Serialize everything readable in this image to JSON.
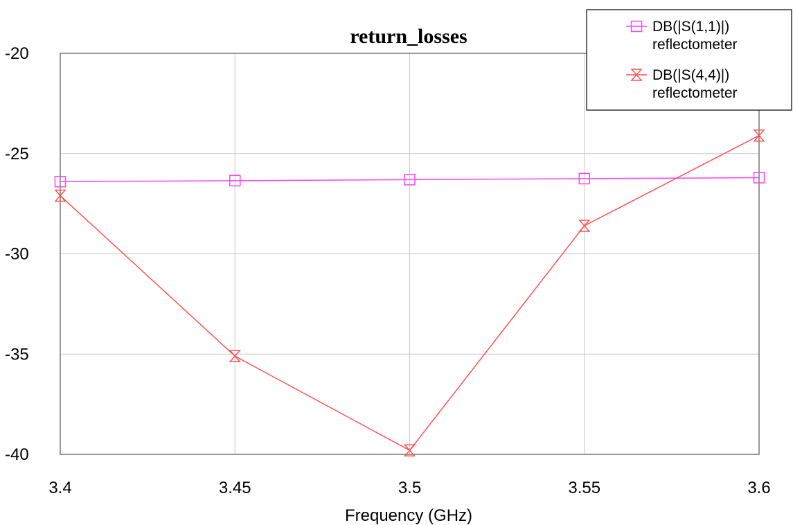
{
  "chart_data": {
    "type": "line",
    "title": "return_losses",
    "xlabel": "Frequency (GHz)",
    "ylabel": "",
    "x": [
      3.4,
      3.45,
      3.5,
      3.55,
      3.6
    ],
    "xticks": [
      "3.4",
      "3.45",
      "3.5",
      "3.55",
      "3.6"
    ],
    "yticks": [
      "-20",
      "-25",
      "-30",
      "-35",
      "-40"
    ],
    "xlim": [
      3.4,
      3.6
    ],
    "ylim": [
      -40,
      -20
    ],
    "grid": true,
    "legend_position": "top-right",
    "series": [
      {
        "key": "s11",
        "name": [
          "DB(|S(1,1)|)",
          "reflectometer"
        ],
        "color": "#ff40ff",
        "marker": "square",
        "values": [
          -26.4,
          -26.35,
          -26.3,
          -26.25,
          -26.2
        ]
      },
      {
        "key": "s44",
        "name": [
          "DB(|S(4,4)|)",
          "reflectometer"
        ],
        "color": "#ff5050",
        "marker": "hourglass",
        "values": [
          -27.1,
          -35.1,
          -39.8,
          -28.6,
          -24.1
        ]
      }
    ]
  }
}
